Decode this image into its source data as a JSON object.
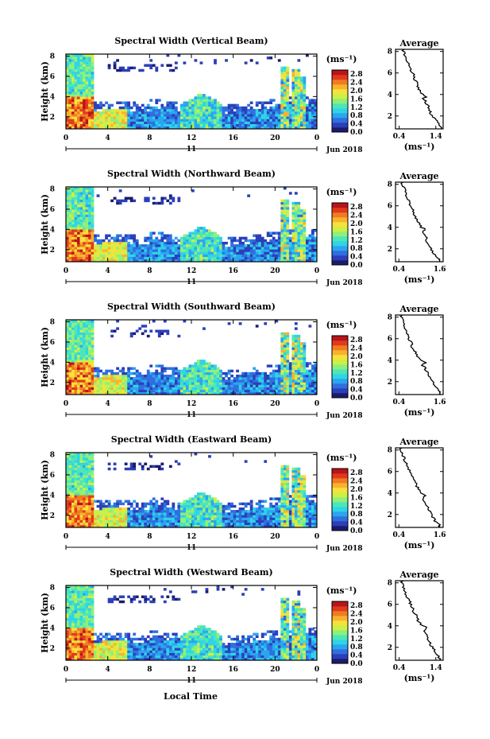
{
  "figure": {
    "xlabel": "Local Time",
    "date_label": "Jun 2018",
    "day_label": "11",
    "cbar_unit": "(ms⁻¹)",
    "avg_unit": "(ms⁻¹)",
    "avg_title": "Average",
    "height_label": "Height (km)",
    "colorbar_colors": [
      "#1b1b6e",
      "#2b3fb8",
      "#2f6fe0",
      "#2aa6ef",
      "#2fd4e6",
      "#4de6b8",
      "#8ef07a",
      "#cdf046",
      "#f6e23a",
      "#f8b22e",
      "#f27a22",
      "#e03a1c",
      "#b8141a"
    ]
  },
  "chart_data": [
    {
      "type": "heatmap",
      "title": "Spectral Width (Vertical Beam)",
      "x_ticks": [
        "0",
        "4",
        "8",
        "12",
        "16",
        "20",
        "0"
      ],
      "xlim": [
        0,
        24
      ],
      "y_ticks": [
        "2",
        "4",
        "6",
        "8"
      ],
      "ylim": [
        0.8,
        8.2
      ],
      "colorbar_ticks": [
        "0.0",
        "0.4",
        "0.8",
        "1.2",
        "1.6",
        "2.0",
        "2.4",
        "2.8"
      ],
      "colorbar_range": [
        0.0,
        3.0
      ],
      "average_profile": {
        "x_ticks": [
          "0.4",
          "1.4"
        ],
        "xlim": [
          0.3,
          1.6
        ],
        "y_ticks": [
          "2",
          "4",
          "6",
          "8"
        ],
        "ylim": [
          0.8,
          8.2
        ],
        "height": [
          1.0,
          1.3,
          1.6,
          2.0,
          2.4,
          2.8,
          3.2,
          3.6,
          3.8,
          4.0,
          4.4,
          4.8,
          5.2,
          5.6,
          6.0,
          6.4,
          6.8,
          7.2,
          7.6,
          8.0
        ],
        "width": [
          1.55,
          1.48,
          1.4,
          1.3,
          1.25,
          1.2,
          1.15,
          1.05,
          1.15,
          1.05,
          0.95,
          0.92,
          0.85,
          0.8,
          0.78,
          0.7,
          0.68,
          0.62,
          0.58,
          0.52
        ]
      }
    },
    {
      "type": "heatmap",
      "title": "Spectral Width (Northward Beam)",
      "x_ticks": [
        "0",
        "4",
        "8",
        "12",
        "16",
        "20",
        "0"
      ],
      "xlim": [
        0,
        24
      ],
      "y_ticks": [
        "2",
        "4",
        "6",
        "8"
      ],
      "ylim": [
        0.8,
        8.2
      ],
      "colorbar_ticks": [
        "0.0",
        "0.4",
        "0.8",
        "1.2",
        "1.6",
        "2.0",
        "2.4",
        "2.8"
      ],
      "colorbar_range": [
        0.0,
        3.0
      ],
      "average_profile": {
        "x_ticks": [
          "0.4",
          "1.6"
        ],
        "xlim": [
          0.3,
          1.7
        ],
        "y_ticks": [
          "2",
          "4",
          "6",
          "8"
        ],
        "ylim": [
          0.8,
          8.2
        ],
        "height": [
          1.0,
          1.3,
          1.6,
          2.0,
          2.4,
          2.8,
          3.2,
          3.6,
          3.8,
          4.0,
          4.4,
          4.8,
          5.2,
          5.6,
          6.0,
          6.4,
          6.8,
          7.2,
          7.6,
          8.0
        ],
        "width": [
          1.6,
          1.5,
          1.42,
          1.35,
          1.28,
          1.22,
          1.18,
          1.1,
          1.2,
          1.05,
          0.98,
          0.9,
          0.82,
          0.85,
          0.72,
          0.7,
          0.62,
          0.6,
          0.55,
          0.5
        ]
      }
    },
    {
      "type": "heatmap",
      "title": "Spectral Width (Southward Beam)",
      "x_ticks": [
        "0",
        "4",
        "8",
        "12",
        "16",
        "20",
        "0"
      ],
      "xlim": [
        0,
        24
      ],
      "y_ticks": [
        "2",
        "4",
        "6",
        "8"
      ],
      "ylim": [
        0.8,
        8.2
      ],
      "colorbar_ticks": [
        "0.0",
        "0.4",
        "0.8",
        "1.2",
        "1.6",
        "2.0",
        "2.4",
        "2.8"
      ],
      "colorbar_range": [
        0.0,
        3.0
      ],
      "average_profile": {
        "x_ticks": [
          "0.4",
          "1.6"
        ],
        "xlim": [
          0.3,
          1.7
        ],
        "y_ticks": [
          "2",
          "4",
          "6",
          "8"
        ],
        "ylim": [
          0.8,
          8.2
        ],
        "height": [
          1.0,
          1.3,
          1.6,
          2.0,
          2.4,
          2.8,
          3.2,
          3.6,
          3.8,
          4.0,
          4.4,
          4.8,
          5.2,
          5.6,
          6.0,
          6.4,
          6.8,
          7.2,
          7.6,
          8.0
        ],
        "width": [
          1.62,
          1.52,
          1.45,
          1.38,
          1.3,
          1.24,
          1.18,
          1.08,
          1.18,
          1.02,
          0.95,
          0.88,
          0.8,
          0.76,
          0.7,
          0.66,
          0.6,
          0.56,
          0.52,
          0.48
        ]
      }
    },
    {
      "type": "heatmap",
      "title": "Spectral Width (Eastward Beam)",
      "x_ticks": [
        "0",
        "4",
        "8",
        "12",
        "16",
        "20",
        "0"
      ],
      "xlim": [
        0,
        24
      ],
      "y_ticks": [
        "2",
        "4",
        "6",
        "8"
      ],
      "ylim": [
        0.8,
        8.2
      ],
      "colorbar_ticks": [
        "0.0",
        "0.4",
        "0.8",
        "1.2",
        "1.6",
        "2.0",
        "2.4",
        "2.8"
      ],
      "colorbar_range": [
        0.0,
        3.0
      ],
      "average_profile": {
        "x_ticks": [
          "0.4",
          "1.6"
        ],
        "xlim": [
          0.3,
          1.7
        ],
        "y_ticks": [
          "2",
          "4",
          "6",
          "8"
        ],
        "ylim": [
          0.8,
          8.2
        ],
        "height": [
          1.0,
          1.3,
          1.6,
          2.0,
          2.4,
          2.8,
          3.2,
          3.6,
          3.8,
          4.0,
          4.4,
          4.8,
          5.2,
          5.6,
          6.0,
          6.4,
          6.8,
          7.2,
          7.6,
          8.0
        ],
        "width": [
          1.6,
          1.5,
          1.42,
          1.35,
          1.28,
          1.22,
          1.15,
          1.08,
          1.2,
          1.05,
          0.98,
          0.9,
          0.84,
          0.78,
          0.72,
          0.66,
          0.6,
          0.56,
          0.5,
          0.46
        ]
      }
    },
    {
      "type": "heatmap",
      "title": "Spectral Width (Westward Beam)",
      "x_ticks": [
        "0",
        "4",
        "8",
        "12",
        "16",
        "20",
        "0"
      ],
      "xlim": [
        0,
        24
      ],
      "y_ticks": [
        "2",
        "4",
        "6",
        "8"
      ],
      "ylim": [
        0.8,
        8.2
      ],
      "colorbar_ticks": [
        "0.0",
        "0.4",
        "0.8",
        "1.2",
        "1.6",
        "2.0",
        "2.4",
        "2.8"
      ],
      "colorbar_range": [
        0.0,
        3.0
      ],
      "average_profile": {
        "x_ticks": [
          "0.4",
          "1.4"
        ],
        "xlim": [
          0.3,
          1.6
        ],
        "y_ticks": [
          "2",
          "4",
          "6",
          "8"
        ],
        "ylim": [
          0.8,
          8.2
        ],
        "height": [
          1.0,
          1.3,
          1.6,
          2.0,
          2.4,
          2.8,
          3.2,
          3.6,
          3.8,
          4.0,
          4.4,
          4.8,
          5.2,
          5.6,
          6.0,
          6.4,
          6.8,
          7.2,
          7.6,
          8.0
        ],
        "width": [
          1.5,
          1.45,
          1.38,
          1.3,
          1.24,
          1.18,
          1.12,
          1.05,
          1.18,
          1.02,
          0.94,
          0.88,
          0.82,
          0.76,
          0.72,
          0.66,
          0.6,
          0.56,
          0.52,
          0.48
        ]
      }
    }
  ]
}
